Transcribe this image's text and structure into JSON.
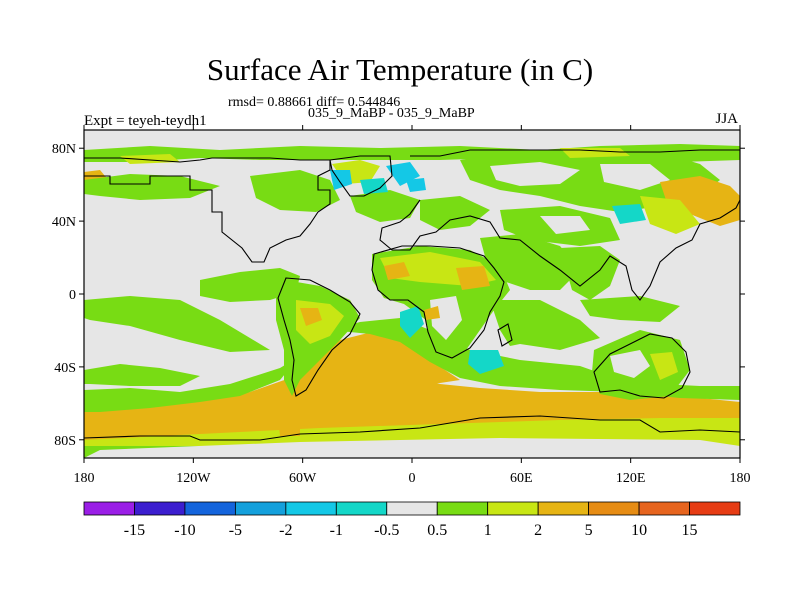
{
  "title": "Surface Air Temperature (in C)",
  "stats_line": "rmsd= 0.88661 diff= 0.544846",
  "experiment_line": "035_9_MaBP - 035_9_MaBP",
  "left_label": "Expt = teyeh-teydh1",
  "right_label": "JJA",
  "lat_ticks": [
    {
      "value": 80,
      "label": "80N"
    },
    {
      "value": 40,
      "label": "40N"
    },
    {
      "value": 0,
      "label": "0"
    },
    {
      "value": -40,
      "label": "40S"
    },
    {
      "value": -80,
      "label": "80S"
    }
  ],
  "lon_ticks": [
    {
      "value": -180,
      "label": "180"
    },
    {
      "value": -120,
      "label": "120W"
    },
    {
      "value": -60,
      "label": "60W"
    },
    {
      "value": 0,
      "label": "0"
    },
    {
      "value": 60,
      "label": "60E"
    },
    {
      "value": 120,
      "label": "120E"
    },
    {
      "value": 180,
      "label": "180"
    }
  ],
  "colorbar": {
    "colors": [
      "#9a1ee6",
      "#3c1ecf",
      "#1464dc",
      "#14a0dc",
      "#14c8e6",
      "#14d7c8",
      "#e6e6e6",
      "#78dc14",
      "#c8e614",
      "#e6b414",
      "#e68c14",
      "#e6641e",
      "#e63c14"
    ],
    "labels": [
      "-15",
      "-10",
      "-5",
      "-2",
      "-1",
      "-0.5",
      "0.5",
      "1",
      "2",
      "5",
      "10",
      "15"
    ]
  }
}
